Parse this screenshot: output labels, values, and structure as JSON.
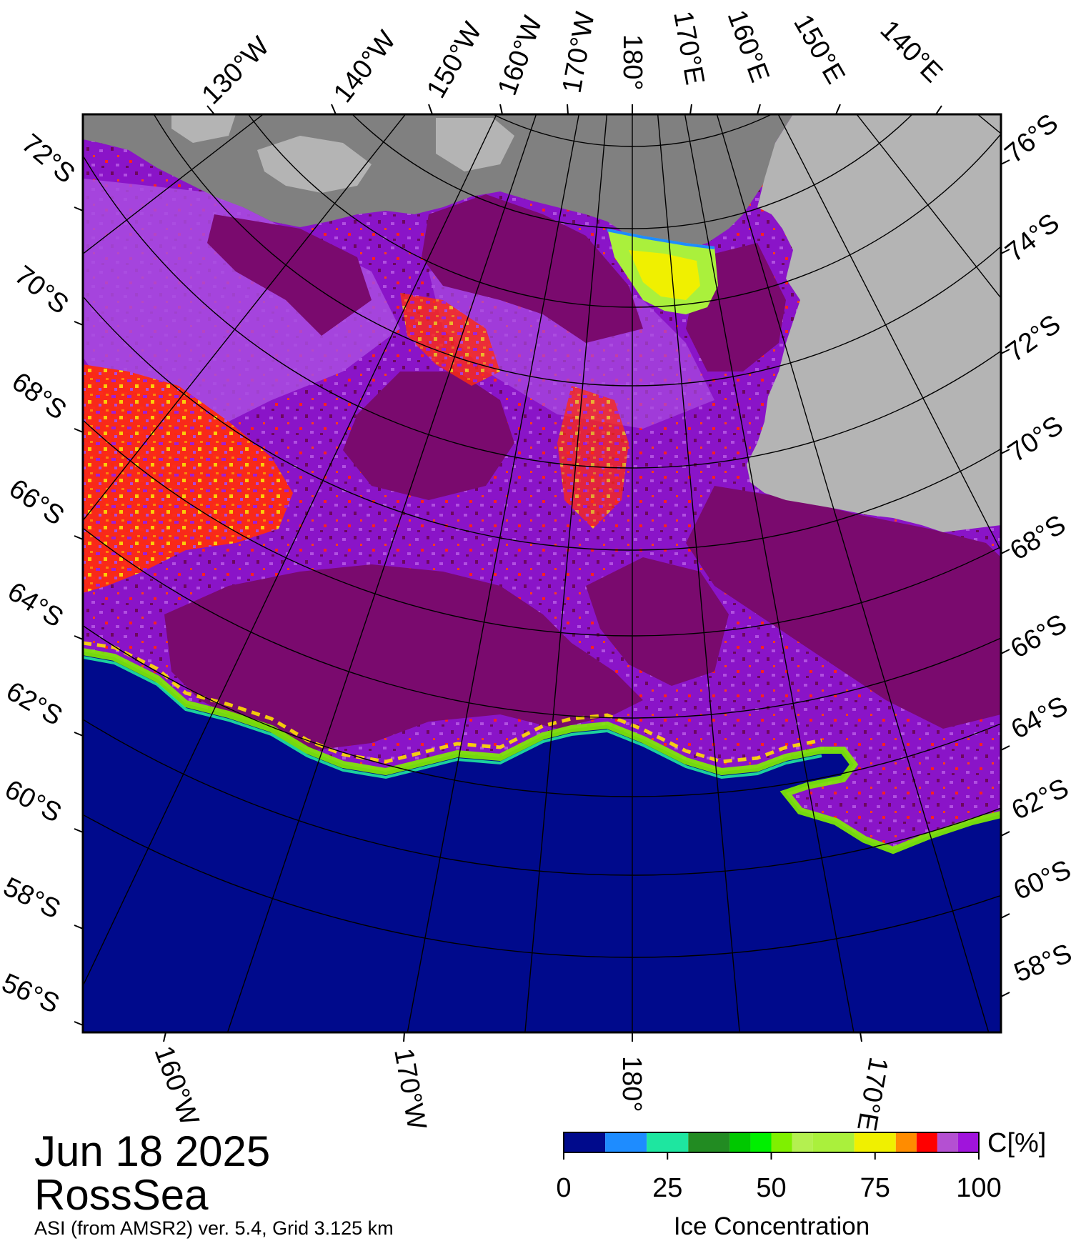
{
  "map": {
    "date": "Jun 18 2025",
    "region": "RossSea",
    "source": "ASI (from AMSR2) ver. 5.4,  Grid 3.125 km",
    "colors": {
      "ocean": "#000a8c",
      "ice_dark": "#7a0a6e",
      "ice_mid": "#8a14c8",
      "ice_light": "#a94ce0",
      "land_dark": "#808080",
      "land_light": "#b4b4b4",
      "frame": "#000000"
    }
  },
  "axis_labels": {
    "top": [
      "130°W",
      "140°W",
      "150°W",
      "160°W",
      "170°W",
      "180°",
      "170°E",
      "160°E",
      "150°E",
      "140°E"
    ],
    "left": [
      "72°S",
      "70°S",
      "68°S",
      "66°S",
      "64°S",
      "62°S",
      "60°S",
      "58°S",
      "56°S"
    ],
    "right": [
      "76°S",
      "74°S",
      "72°S",
      "70°S",
      "68°S",
      "66°S",
      "64°S",
      "62°S",
      "60°S",
      "58°S"
    ],
    "bottom": [
      "160°W",
      "170°W",
      "180°",
      "170°E"
    ]
  },
  "colorbar": {
    "title": "Ice Concentration",
    "unit": "C[%]",
    "ticks": [
      "0",
      "25",
      "50",
      "75",
      "100"
    ],
    "range": [
      0,
      100
    ],
    "colors": [
      "#000a8c",
      "#1e8cff",
      "#1ee6a0",
      "#228b22",
      "#00c800",
      "#00f000",
      "#7ff000",
      "#b4f050",
      "#aaf03c",
      "#f0f000",
      "#ff8c00",
      "#ff0000",
      "#b450d2",
      "#a014dc"
    ],
    "bounds": [
      0,
      10,
      20,
      30,
      40,
      45,
      50,
      55,
      60,
      70,
      80,
      85,
      90,
      95,
      100
    ]
  }
}
